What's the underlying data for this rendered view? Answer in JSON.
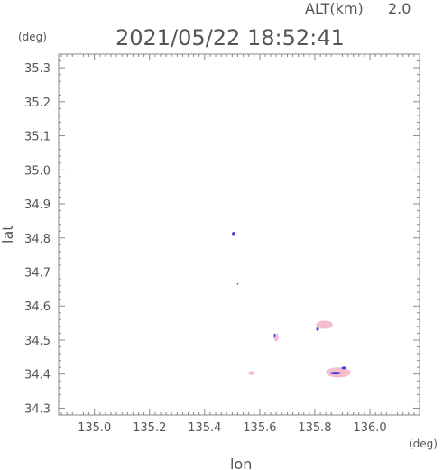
{
  "header": {
    "altitude_label": "ALT(km)",
    "altitude_value": "2.0",
    "timestamp": "2021/05/22 18:52:41"
  },
  "chart_data": {
    "type": "scatter",
    "xlabel": "lon",
    "ylabel": "lat",
    "x_unit": "(deg)",
    "y_unit": "(deg)",
    "xlim": [
      134.87,
      136.18
    ],
    "ylim": [
      34.28,
      35.34
    ],
    "x_ticks": [
      "135.0",
      "135.2",
      "135.4",
      "135.6",
      "135.8",
      "136.0"
    ],
    "y_ticks": [
      "34.3",
      "34.4",
      "34.5",
      "34.6",
      "34.7",
      "34.8",
      "34.9",
      "35.0",
      "35.1",
      "35.2",
      "35.3"
    ],
    "echo_colors": {
      "weak": "#f4b6c8",
      "strong": "#3a3ad8"
    },
    "echoes": [
      {
        "id": "echo-1",
        "lon": 135.505,
        "lat": 34.812,
        "rx": 0.006,
        "ry": 0.006,
        "level": "strong"
      },
      {
        "id": "echo-2",
        "lon": 135.52,
        "lat": 34.665,
        "rx": 0.002,
        "ry": 0.002,
        "level": "strong"
      },
      {
        "id": "echo-3",
        "lon": 135.835,
        "lat": 34.545,
        "rx": 0.03,
        "ry": 0.012,
        "level": "weak"
      },
      {
        "id": "echo-4",
        "lon": 135.81,
        "lat": 34.532,
        "rx": 0.005,
        "ry": 0.005,
        "level": "strong"
      },
      {
        "id": "echo-5",
        "lon": 135.66,
        "lat": 34.508,
        "rx": 0.009,
        "ry": 0.012,
        "level": "weak"
      },
      {
        "id": "echo-6",
        "lon": 135.654,
        "lat": 34.513,
        "rx": 0.003,
        "ry": 0.006,
        "level": "strong"
      },
      {
        "id": "echo-7",
        "lon": 135.57,
        "lat": 34.403,
        "rx": 0.012,
        "ry": 0.006,
        "level": "weak"
      },
      {
        "id": "echo-8",
        "lon": 135.885,
        "lat": 34.405,
        "rx": 0.045,
        "ry": 0.015,
        "level": "weak"
      },
      {
        "id": "echo-9",
        "lon": 135.875,
        "lat": 34.403,
        "rx": 0.02,
        "ry": 0.004,
        "level": "strong"
      },
      {
        "id": "echo-10",
        "lon": 135.905,
        "lat": 34.418,
        "rx": 0.008,
        "ry": 0.004,
        "level": "strong"
      }
    ]
  }
}
